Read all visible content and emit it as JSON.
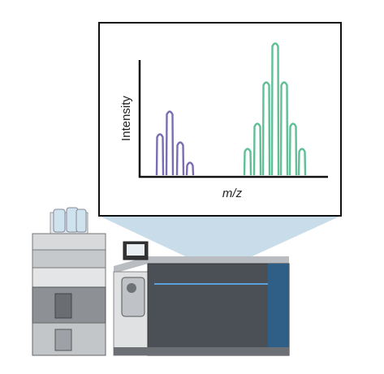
{
  "inset": {
    "y_label": "Intensity",
    "x_label": "m/z"
  }
}
